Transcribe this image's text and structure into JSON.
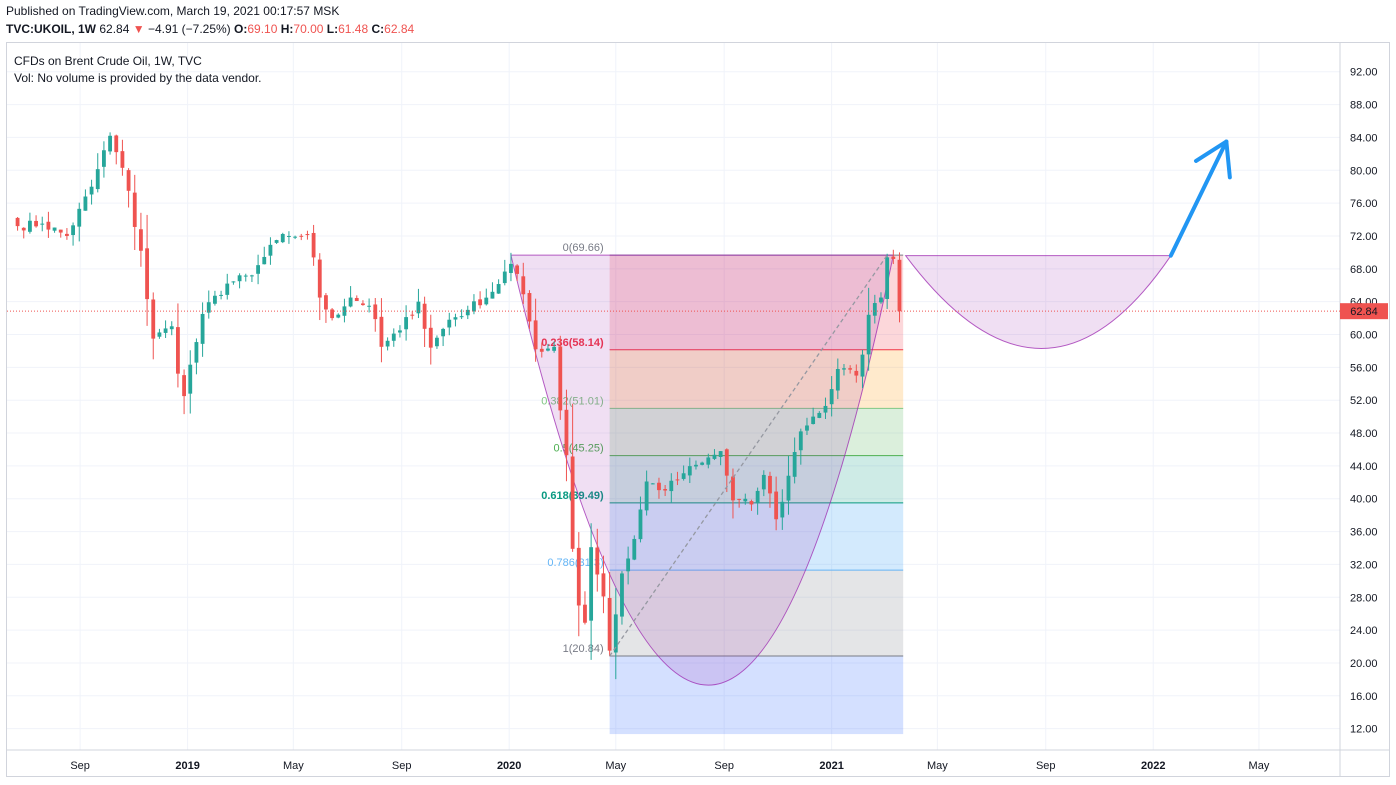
{
  "header": {
    "published": "Published on TradingView.com, March 19, 2021 00:17:57 MSK",
    "symbol": "TVC:UKOIL, 1W",
    "last": "62.84",
    "arrow": "▼",
    "change": "−4.91 (−7.25%)",
    "o_label": "O:",
    "o_value": "69.10",
    "h_label": "H:",
    "h_value": "70.00",
    "l_label": "L:",
    "l_value": "61.48",
    "c_label": "C:",
    "c_value": "62.84"
  },
  "legend": {
    "title": "CFDs on Brent Crude Oil, 1W, TVC",
    "volume_note": "Vol: No volume is provided by the data vendor."
  },
  "colors": {
    "up": "#26a69a",
    "down": "#ef5350",
    "arrow": "#2196f3",
    "cup": "#9c27b0",
    "price_tag": "#ef5350"
  },
  "chart_data": {
    "type": "candlestick",
    "instrument": "TVC:UKOIL",
    "timeframe": "1W",
    "last_price": 62.84,
    "y_ticks": [
      12,
      16,
      20,
      24,
      28,
      32,
      36,
      40,
      44,
      48,
      52,
      56,
      60,
      64,
      68,
      72,
      76,
      80,
      84,
      88,
      92
    ],
    "y_tick_labels": [
      "12.00",
      "16.00",
      "20.00",
      "24.00",
      "28.00",
      "32.00",
      "36.00",
      "40.00",
      "44.00",
      "48.00",
      "52.00",
      "56.00",
      "60.00",
      "64.00",
      "68.00",
      "72.00",
      "76.00",
      "80.00",
      "84.00",
      "88.00",
      "92.00"
    ],
    "x_ticks": [
      "2018-09-01",
      "2019-01-01",
      "2019-05-01",
      "2019-09-01",
      "2020-01-01",
      "2020-05-01",
      "2020-09-01",
      "2021-01-01",
      "2021-05-01",
      "2021-09-01",
      "2022-01-01",
      "2022-05-01"
    ],
    "x_tick_labels": [
      "Sep",
      "2019",
      "May",
      "Sep",
      "2020",
      "May",
      "Sep",
      "2021",
      "May",
      "Sep",
      "2022",
      "May"
    ],
    "anchors": [
      {
        "date": "2018-06-22",
        "close": 73.2
      },
      {
        "date": "2018-07-20",
        "close": 73.5
      },
      {
        "date": "2018-08-17",
        "close": 72.0
      },
      {
        "date": "2018-09-14",
        "close": 78.0
      },
      {
        "date": "2018-10-05",
        "close": 84.2
      },
      {
        "date": "2018-10-26",
        "close": 77.5
      },
      {
        "date": "2018-11-09",
        "close": 70.2
      },
      {
        "date": "2018-11-23",
        "close": 59.5
      },
      {
        "date": "2018-12-14",
        "close": 61.0
      },
      {
        "date": "2018-12-28",
        "close": 52.5
      },
      {
        "date": "2019-01-18",
        "close": 62.5
      },
      {
        "date": "2019-02-15",
        "close": 66.2
      },
      {
        "date": "2019-03-15",
        "close": 67.2
      },
      {
        "date": "2019-04-12",
        "close": 71.5
      },
      {
        "date": "2019-04-26",
        "close": 72.0
      },
      {
        "date": "2019-05-17",
        "close": 72.2
      },
      {
        "date": "2019-05-31",
        "close": 64.5
      },
      {
        "date": "2019-06-14",
        "close": 62.0
      },
      {
        "date": "2019-07-05",
        "close": 64.5
      },
      {
        "date": "2019-07-26",
        "close": 63.5
      },
      {
        "date": "2019-08-09",
        "close": 58.5
      },
      {
        "date": "2019-08-30",
        "close": 60.5
      },
      {
        "date": "2019-09-20",
        "close": 64.0
      },
      {
        "date": "2019-10-04",
        "close": 58.4
      },
      {
        "date": "2019-10-25",
        "close": 61.8
      },
      {
        "date": "2019-11-15",
        "close": 63.0
      },
      {
        "date": "2019-12-13",
        "close": 65.2
      },
      {
        "date": "2020-01-03",
        "close": 68.6
      },
      {
        "date": "2020-01-17",
        "close": 64.9
      },
      {
        "date": "2020-01-31",
        "close": 58.2
      },
      {
        "date": "2020-02-21",
        "close": 58.5
      },
      {
        "date": "2020-03-06",
        "close": 45.3
      },
      {
        "date": "2020-03-13",
        "close": 33.9
      },
      {
        "date": "2020-03-20",
        "close": 27.0
      },
      {
        "date": "2020-03-27",
        "close": 24.9
      },
      {
        "date": "2020-04-03",
        "close": 34.1
      },
      {
        "date": "2020-04-17",
        "close": 28.1
      },
      {
        "date": "2020-04-24",
        "close": 21.5
      },
      {
        "date": "2020-05-08",
        "close": 30.9
      },
      {
        "date": "2020-05-22",
        "close": 35.1
      },
      {
        "date": "2020-06-05",
        "close": 42.1
      },
      {
        "date": "2020-06-26",
        "close": 41.0
      },
      {
        "date": "2020-07-17",
        "close": 43.1
      },
      {
        "date": "2020-08-07",
        "close": 44.4
      },
      {
        "date": "2020-08-28",
        "close": 45.8
      },
      {
        "date": "2020-09-11",
        "close": 39.8
      },
      {
        "date": "2020-10-02",
        "close": 39.3
      },
      {
        "date": "2020-10-16",
        "close": 42.9
      },
      {
        "date": "2020-10-30",
        "close": 37.5
      },
      {
        "date": "2020-11-13",
        "close": 42.8
      },
      {
        "date": "2020-11-27",
        "close": 48.2
      },
      {
        "date": "2020-12-11",
        "close": 50.0
      },
      {
        "date": "2020-12-25",
        "close": 51.3
      },
      {
        "date": "2021-01-08",
        "close": 55.8
      },
      {
        "date": "2021-01-29",
        "close": 55.0
      },
      {
        "date": "2021-02-12",
        "close": 62.4
      },
      {
        "date": "2021-02-26",
        "close": 64.5
      },
      {
        "date": "2021-03-05",
        "close": 69.4
      },
      {
        "date": "2021-03-12",
        "close": 69.2
      },
      {
        "date": "2021-03-19",
        "close": 62.84
      }
    ],
    "fibonacci": [
      {
        "ratio": "0",
        "price": 69.66,
        "label": "0(69.66)"
      },
      {
        "ratio": "0.236",
        "price": 58.14,
        "label": "0.236(58.14)"
      },
      {
        "ratio": "0.382",
        "price": 51.01,
        "label": "0.382(51.01)"
      },
      {
        "ratio": "0.5",
        "price": 45.25,
        "label": "0.5(45.25)"
      },
      {
        "ratio": "0.618",
        "price": 39.49,
        "label": "0.618(39.49)"
      },
      {
        "ratio": "0.786",
        "price": 31.3,
        "label": "0.786(31.3)"
      },
      {
        "ratio": "1",
        "price": 20.84,
        "label": "1(20.84)"
      }
    ],
    "fib_band_colors": [
      "#f23645",
      "#ff9800",
      "#4caf50",
      "#089981",
      "#2196f3",
      "#787b86",
      "#2962ff"
    ],
    "fib_line_colors": [
      "#787b86",
      "#f23645",
      "#81c784",
      "#4caf50",
      "#089981",
      "#64b5f6",
      "#787b86"
    ],
    "fib_range": {
      "start": "2020-04-24",
      "end": "2021-03-19",
      "extend_below": 9.5
    },
    "trend_line": {
      "from": {
        "date": "2020-04-24",
        "price": 20.84
      },
      "to": {
        "date": "2021-03-05",
        "price": 69.66
      }
    },
    "cup_left": {
      "from": {
        "date": "2020-01-03",
        "price": 69.66
      },
      "bottom": {
        "date": "2020-08-14",
        "price": 17.3
      },
      "to": {
        "date": "2021-03-12",
        "price": 69.66
      }
    },
    "cup_right": {
      "from": {
        "date": "2021-03-26",
        "price": 69.6
      },
      "bottom": {
        "date": "2021-08-27",
        "price": 58.3
      },
      "to": {
        "date": "2022-01-21",
        "price": 69.6
      }
    },
    "arrow": {
      "from": {
        "date": "2022-01-21",
        "price": 69.6
      },
      "to": {
        "date": "2022-03-25",
        "price": 83.5
      }
    },
    "price_line": 62.84,
    "grid": true,
    "y_axis_side": "right"
  }
}
